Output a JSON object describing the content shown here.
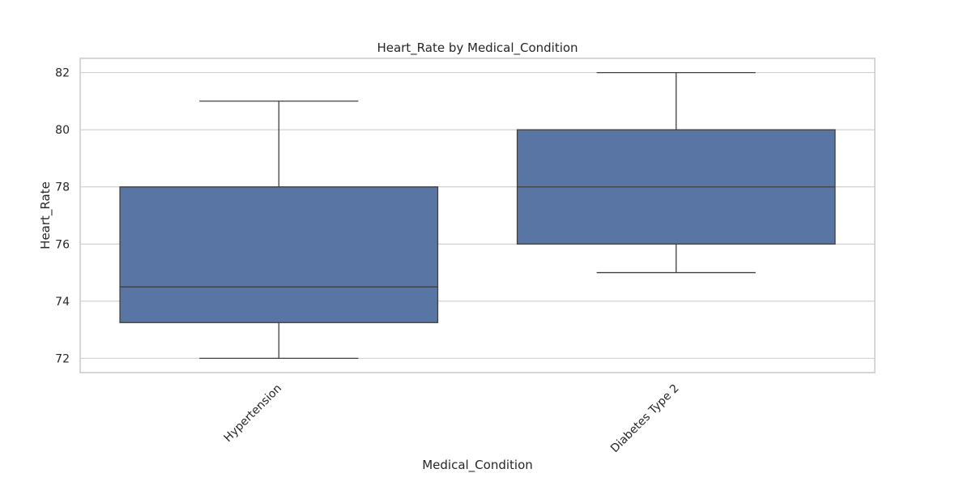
{
  "chart_data": {
    "type": "box",
    "title": "Heart_Rate by Medical_Condition",
    "xlabel": "Medical_Condition",
    "ylabel": "Heart_Rate",
    "ylim": [
      71.5,
      82.5
    ],
    "yticks": [
      72,
      74,
      76,
      78,
      80,
      82
    ],
    "categories": [
      "Hypertension",
      "Diabetes Type 2"
    ],
    "boxes": [
      {
        "category": "Hypertension",
        "whisker_low": 72,
        "q1": 73.25,
        "median": 74.5,
        "q3": 78,
        "whisker_high": 81
      },
      {
        "category": "Diabetes Type 2",
        "whisker_low": 75,
        "q1": 76,
        "median": 78,
        "q3": 80,
        "whisker_high": 82
      }
    ],
    "grid": true,
    "box_color": "#5975a4",
    "line_color": "#3f3f3f",
    "grid_color": "#cccccc"
  }
}
